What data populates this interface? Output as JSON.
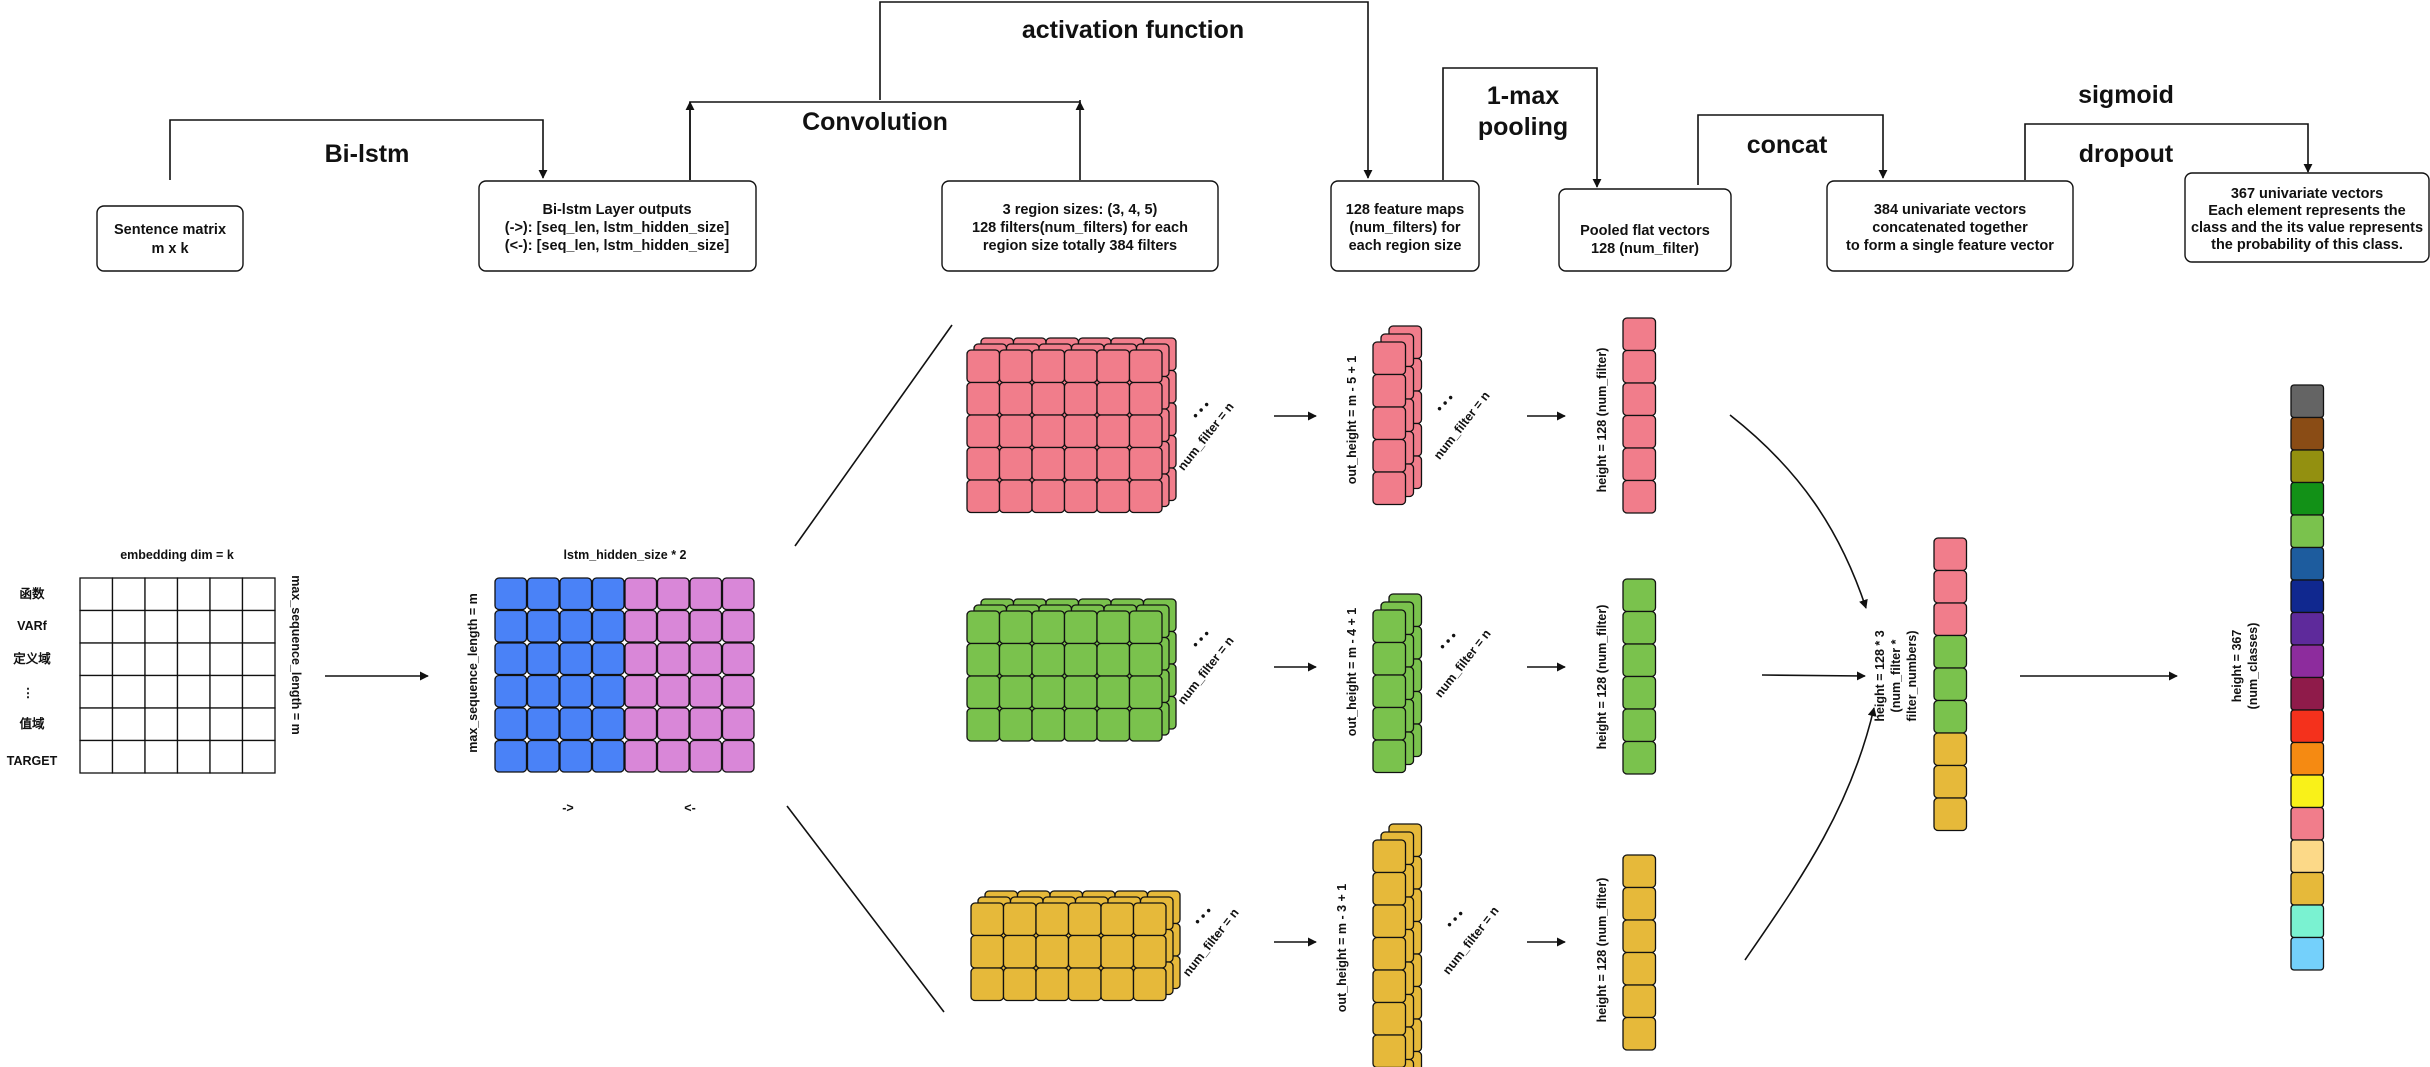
{
  "stage_titles": {
    "bilstm": "Bi-lstm",
    "convolution": "Convolution",
    "activation": "activation function",
    "pooling_line1": "1-max",
    "pooling_line2": "pooling",
    "concat": "concat",
    "sigmoid": "sigmoid",
    "dropout": "dropout"
  },
  "boxes": {
    "sentence_matrix": [
      "Sentence matrix",
      "m x k"
    ],
    "bilstm_outputs": [
      "Bi-lstm Layer outputs",
      "(->): [seq_len,  lstm_hidden_size]",
      "(<-): [seq_len, lstm_hidden_size]"
    ],
    "region_sizes": [
      "3 region sizes: (3, 4, 5)",
      "128 filters(num_filters) for each",
      "region size totally 384 filters"
    ],
    "feature_maps": [
      "128 feature maps",
      "(num_filters) for",
      "each region size"
    ],
    "pooled": [
      "Pooled flat vectors",
      "128 (num_filter)"
    ],
    "univariate": [
      "384 univariate vectors",
      "concatenated together",
      "to form a single feature vector"
    ],
    "output_vectors": [
      "367 univariate vectors",
      "Each element represents the",
      "class and the its value represents",
      "the probability of this class."
    ]
  },
  "embedding": {
    "top_label": "embedding dim = k",
    "side_label": "max_sequence_length = m",
    "row_labels": [
      "函数",
      "VARf",
      "定义域",
      "⋮",
      "值域",
      "TARGET"
    ]
  },
  "lstm": {
    "top_label": "lstm_hidden_size * 2",
    "side_label": "max_sequence_length = m",
    "forward_label": "->",
    "backward_label": "<-",
    "forward_color": "#4a82f7",
    "backward_color": "#d987d8"
  },
  "branches": [
    {
      "color": "#f17d8b",
      "num_filter_label": "num_filter = n",
      "out_height_label": "out_height = m - 5 + 1",
      "pooled_label": "height = 128 (num_filter)"
    },
    {
      "color": "#7ac24d",
      "num_filter_label": "num_filter = n",
      "out_height_label": "out_height = m - 4 + 1",
      "pooled_label": "height = 128 (num_filter)"
    },
    {
      "color": "#e6b93a",
      "num_filter_label": "num_filter = n",
      "out_height_label": "out_height = m - 3 + 1",
      "pooled_label": "height = 128 (num_filter)"
    }
  ],
  "concat_vector": {
    "label_lines": [
      "height = 128 * 3",
      "(num_filter *",
      "filter_numbers)"
    ]
  },
  "output_vector": {
    "label_lines": [
      "height = 367",
      "(num_classes)"
    ],
    "colors": [
      "#646464",
      "#8a4c15",
      "#939010",
      "#129117",
      "#7ac24d",
      "#1d5c9e",
      "#10288f",
      "#5e2a9b",
      "#8d2c9d",
      "#8f1b4a",
      "#f4311c",
      "#f58a12",
      "#f9f119",
      "#f17d8b",
      "#fcd988",
      "#e6b93a",
      "#7af2d1",
      "#74d0fb"
    ]
  },
  "ellipsis": "• • •"
}
